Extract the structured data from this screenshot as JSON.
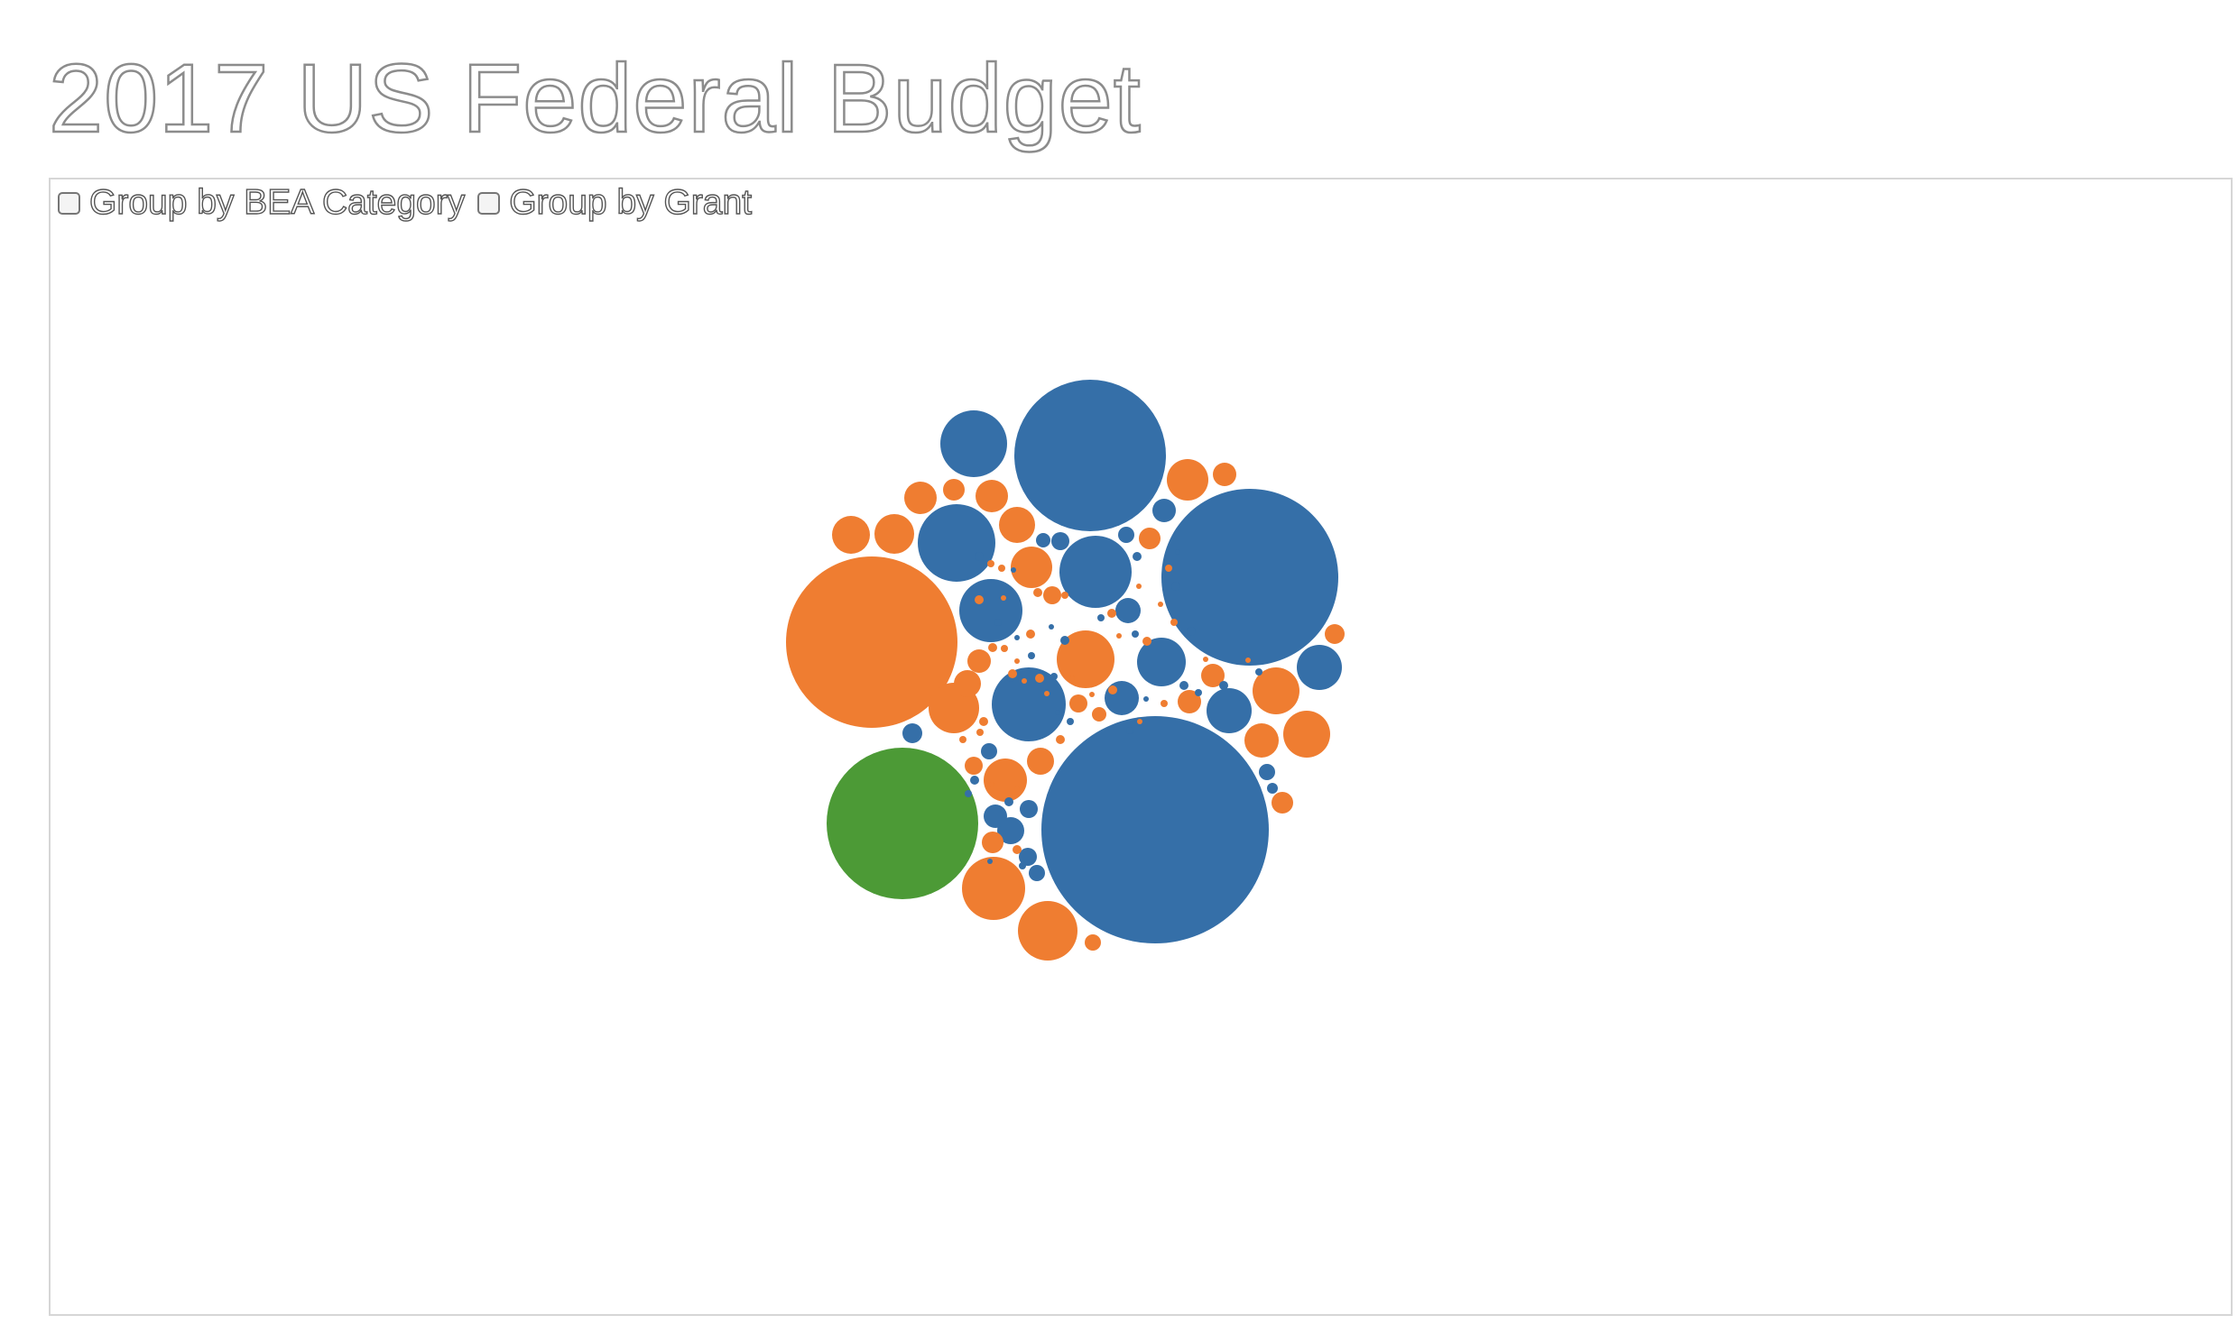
{
  "page": {
    "title": "2017 US Federal Budget"
  },
  "controls": {
    "group_by_bea": {
      "label": "Group by BEA Category",
      "checked": false
    },
    "group_by_grant": {
      "label": "Group by Grant",
      "checked": false
    }
  },
  "colors": {
    "blue": "#356fa8",
    "orange": "#ef7d31",
    "green": "#4c9a36"
  }
}
